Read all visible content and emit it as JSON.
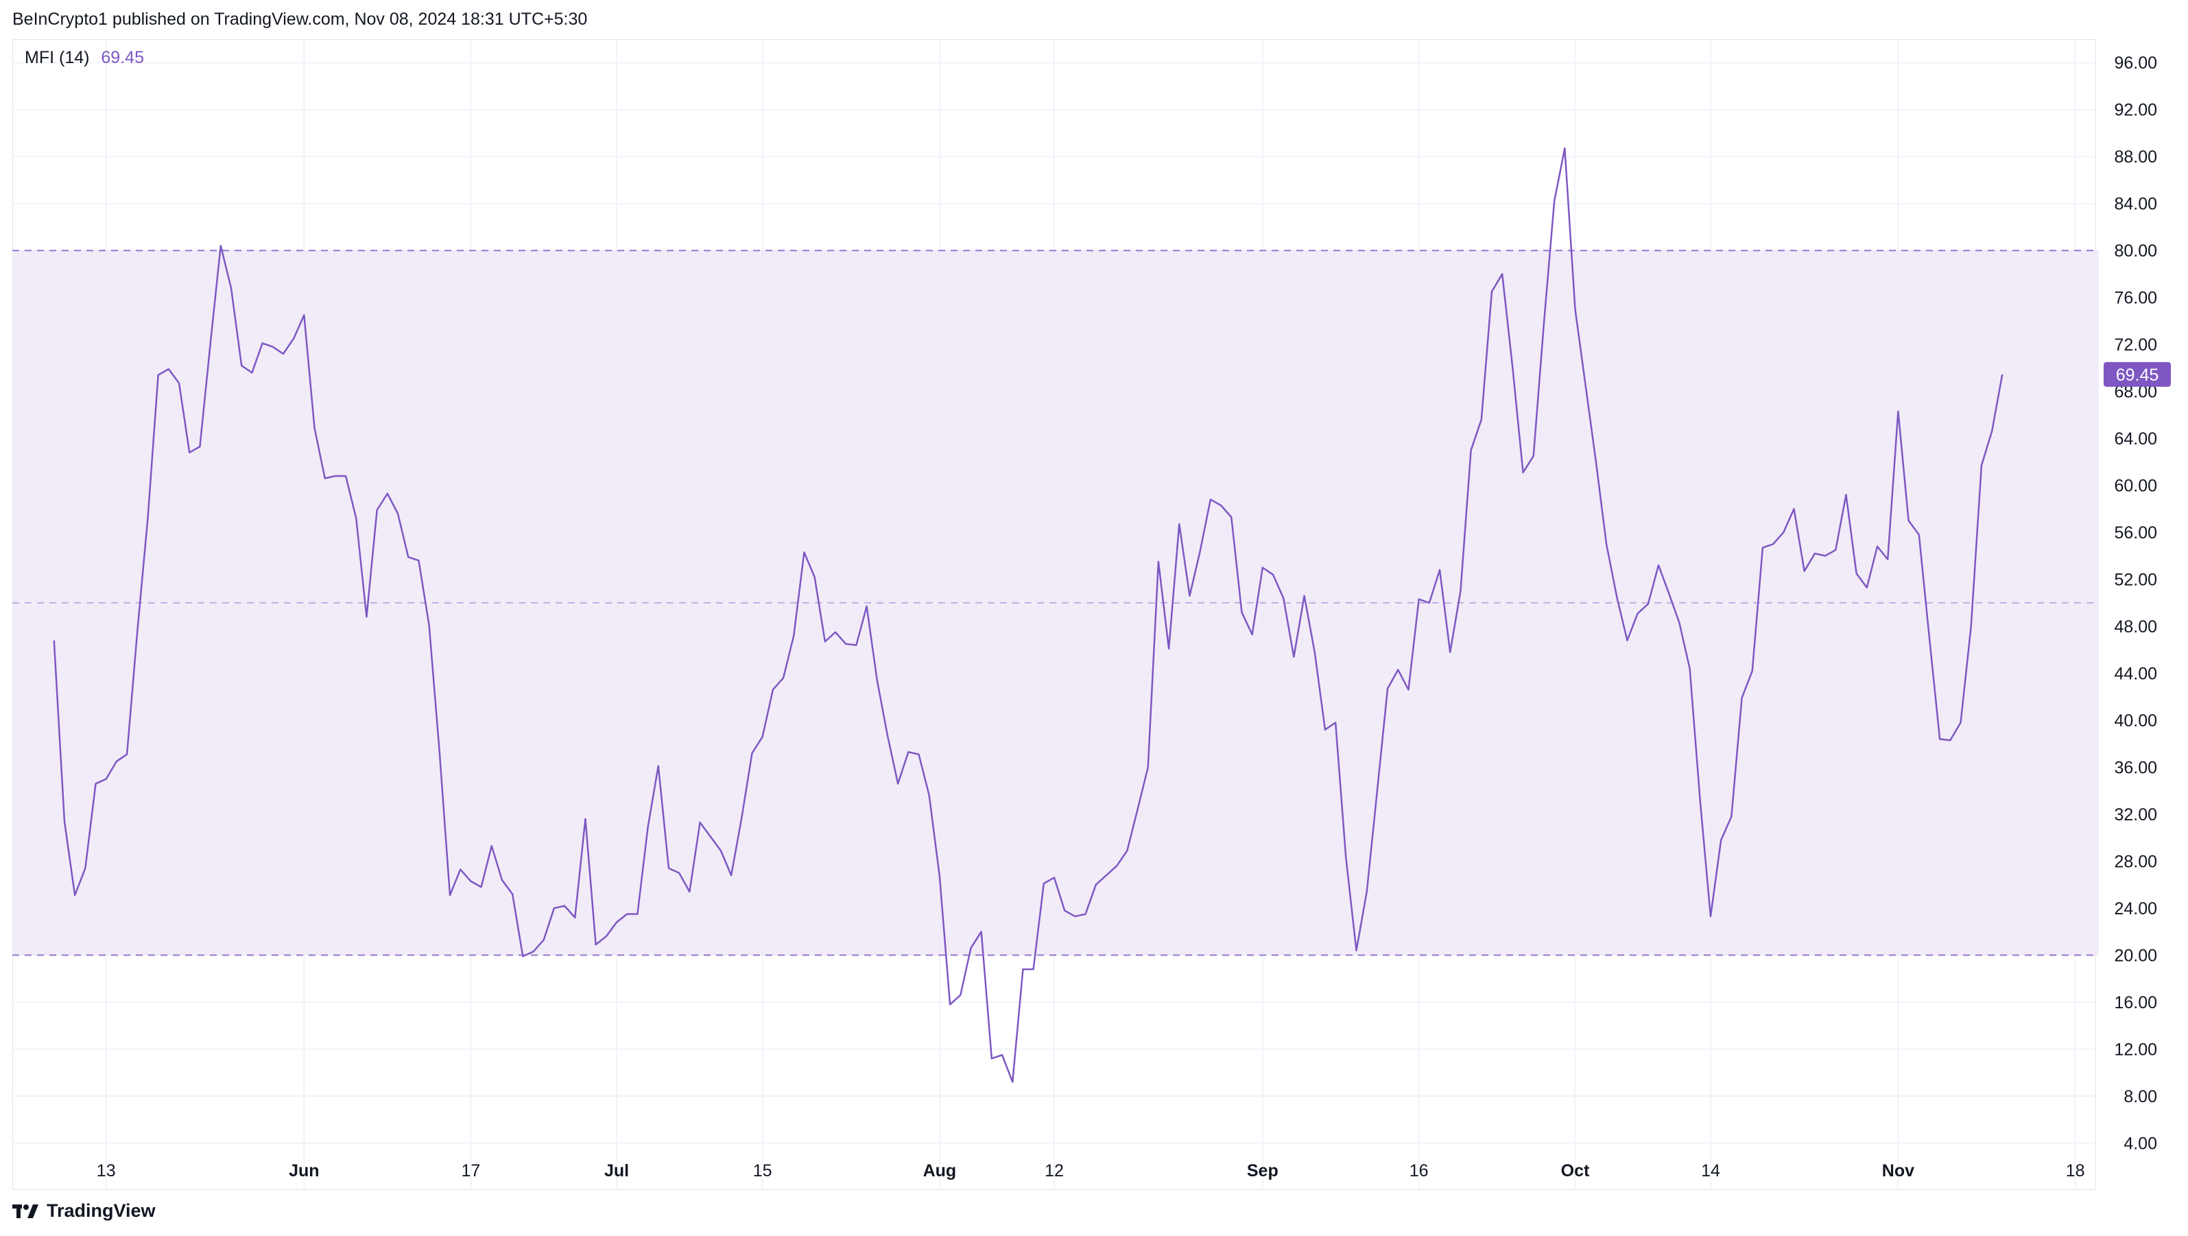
{
  "header": {
    "text": "BeInCrypto1 published on TradingView.com, Nov 08, 2024 18:31 UTC+5:30"
  },
  "legend": {
    "label": "MFI (14)",
    "value": "69.45"
  },
  "footer": {
    "brand": "TradingView",
    "logo_icon": "tradingview-logo-icon"
  },
  "colors": {
    "line": "#7e57c2",
    "band_fill": "#ede7f6",
    "band_line": "#7e57c2",
    "grid": "#f0f3fa",
    "price_tag": "#7e57c2"
  },
  "chart_data": {
    "type": "line",
    "title": "MFI (14)",
    "current_value": 69.45,
    "ylim": [
      0,
      98
    ],
    "y_ticks": [
      "96.00",
      "92.00",
      "88.00",
      "84.00",
      "80.00",
      "76.00",
      "72.00",
      "68.00",
      "64.00",
      "60.00",
      "56.00",
      "52.00",
      "48.00",
      "44.00",
      "40.00",
      "36.00",
      "32.00",
      "28.00",
      "24.00",
      "20.00",
      "16.00",
      "12.00",
      "8.00",
      "4.00"
    ],
    "x_ticks": [
      {
        "label": "13",
        "day": 5,
        "bold": false
      },
      {
        "label": "Jun",
        "day": 24,
        "bold": true
      },
      {
        "label": "17",
        "day": 40,
        "bold": false
      },
      {
        "label": "Jul",
        "day": 54,
        "bold": true
      },
      {
        "label": "15",
        "day": 68,
        "bold": false
      },
      {
        "label": "Aug",
        "day": 85,
        "bold": true
      },
      {
        "label": "12",
        "day": 96,
        "bold": false
      },
      {
        "label": "Sep",
        "day": 116,
        "bold": true
      },
      {
        "label": "16",
        "day": 131,
        "bold": false
      },
      {
        "label": "Oct",
        "day": 146,
        "bold": true
      },
      {
        "label": "14",
        "day": 159,
        "bold": false
      },
      {
        "label": "Nov",
        "day": 177,
        "bold": true
      },
      {
        "label": "18",
        "day": 194,
        "bold": false
      }
    ],
    "x_range": [
      -4,
      196
    ],
    "bands": {
      "upper": 80,
      "middle": 50,
      "lower": 20
    },
    "values": [
      46.8,
      31.4,
      25.1,
      27.4,
      34.6,
      35.0,
      36.5,
      37.1,
      47.6,
      57.2,
      69.4,
      69.9,
      68.7,
      62.8,
      63.3,
      72.0,
      80.4,
      76.8,
      70.2,
      69.6,
      72.1,
      71.8,
      71.2,
      72.5,
      74.5,
      64.9,
      60.6,
      60.8,
      60.8,
      57.2,
      48.8,
      57.9,
      59.3,
      57.6,
      53.9,
      53.6,
      48.1,
      37.3,
      25.1,
      27.3,
      26.3,
      25.8,
      29.3,
      26.4,
      25.2,
      19.9,
      20.3,
      21.3,
      24.0,
      24.2,
      23.2,
      31.6,
      20.9,
      21.6,
      22.8,
      23.5,
      23.5,
      30.9,
      36.1,
      27.4,
      27.0,
      25.4,
      31.3,
      30.1,
      28.9,
      26.8,
      31.7,
      37.2,
      38.6,
      42.6,
      43.6,
      47.2,
      54.3,
      52.2,
      46.7,
      47.5,
      46.5,
      46.4,
      49.7,
      43.4,
      38.7,
      34.6,
      37.3,
      37.1,
      33.6,
      26.7,
      15.8,
      16.6,
      20.6,
      22.0,
      11.2,
      11.5,
      9.2,
      18.8,
      18.8,
      26.1,
      26.6,
      23.8,
      23.3,
      23.5,
      26.0,
      26.8,
      27.6,
      28.9,
      32.4,
      36.0,
      53.5,
      46.1,
      56.7,
      50.6,
      54.4,
      58.8,
      58.3,
      57.3,
      49.2,
      47.3,
      53.0,
      52.4,
      50.4,
      45.4,
      50.6,
      45.8,
      39.2,
      39.8,
      28.3,
      20.4,
      25.4,
      34.0,
      42.7,
      44.3,
      42.6,
      50.3,
      50.0,
      52.8,
      45.8,
      51.0,
      63.0,
      65.6,
      76.5,
      78.0,
      70.0,
      61.1,
      62.5,
      73.8,
      84.2,
      88.7,
      75.0,
      68.5,
      62.0,
      55.0,
      50.5,
      46.8,
      49.1,
      49.9,
      53.2,
      50.8,
      48.3,
      44.4,
      33.1,
      23.3,
      29.8,
      31.8,
      41.9,
      44.2,
      54.7,
      55.0,
      56.0,
      58.0,
      52.7,
      54.2,
      54.0,
      54.5,
      59.2,
      52.5,
      51.3,
      54.8,
      53.7,
      66.3,
      57.0,
      55.8,
      47.0,
      38.4,
      38.3,
      39.8,
      48.0,
      61.7,
      64.6,
      69.45
    ]
  }
}
